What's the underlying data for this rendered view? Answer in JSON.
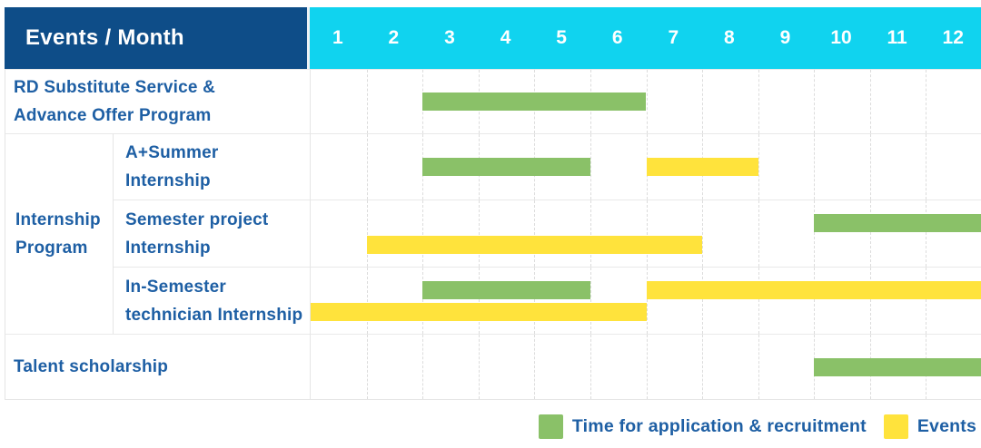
{
  "header": {
    "title": "Events / Month",
    "months": [
      "1",
      "2",
      "3",
      "4",
      "5",
      "6",
      "7",
      "8",
      "9",
      "10",
      "11",
      "12"
    ]
  },
  "legend": {
    "items": [
      {
        "series": "application",
        "label": "Time for application & recruitment",
        "color": "#8ac168"
      },
      {
        "series": "events",
        "label": "Events",
        "color": "#ffe33c"
      }
    ]
  },
  "colors": {
    "header_bg": "#0e4d88",
    "month_strip_bg": "#10d3ef",
    "application_green": "#8ac168",
    "events_yellow": "#ffe33c",
    "label_text": "#1e5fa4"
  },
  "chart_data": {
    "type": "bar",
    "subtype": "gantt-schedule",
    "title": "Events / Month",
    "xlabel": "Month",
    "x_categories": [
      "1",
      "2",
      "3",
      "4",
      "5",
      "6",
      "7",
      "8",
      "9",
      "10",
      "11",
      "12"
    ],
    "x_range": [
      1,
      12
    ],
    "grid": true,
    "legend_position": "bottom-right",
    "legend": [
      "Time for application & recruitment",
      "Events"
    ],
    "rows": [
      {
        "group": "",
        "label": "RD Substitute Service & Advance Offer Program",
        "label_lines": [
          "RD Substitute Service &",
          "Advance Offer Program"
        ],
        "bars": [
          {
            "series": "application",
            "start_month": 3,
            "end_month": 6,
            "line": 0
          }
        ]
      },
      {
        "group": "Internship Program",
        "group_lines": [
          "Internship",
          "Program"
        ],
        "label": "A+Summer Internship",
        "label_lines": [
          "A+Summer",
          "Internship"
        ],
        "bars": [
          {
            "series": "application",
            "start_month": 3,
            "end_month": 5,
            "line": 0
          },
          {
            "series": "events",
            "start_month": 7,
            "end_month": 8,
            "line": 0
          }
        ]
      },
      {
        "group": "Internship Program",
        "label": "Semester project Internship",
        "label_lines": [
          "Semester project",
          "Internship"
        ],
        "bars": [
          {
            "series": "application",
            "start_month": 10,
            "end_month": 12,
            "line": 0
          },
          {
            "series": "events",
            "start_month": 2,
            "end_month": 7,
            "line": 1
          }
        ]
      },
      {
        "group": "Internship Program",
        "label": "In-Semester technician Internship",
        "label_lines": [
          "In-Semester",
          "technician Internship"
        ],
        "bars": [
          {
            "series": "application",
            "start_month": 3,
            "end_month": 5,
            "line": 0
          },
          {
            "series": "events",
            "start_month": 7,
            "end_month": 12,
            "line": 0
          },
          {
            "series": "events",
            "start_month": 1,
            "end_month": 6,
            "line": 1
          }
        ]
      },
      {
        "group": "",
        "label": "Talent scholarship",
        "label_lines": [
          "Talent scholarship"
        ],
        "bars": [
          {
            "series": "application",
            "start_month": 10,
            "end_month": 12,
            "line": 0
          }
        ]
      }
    ]
  }
}
